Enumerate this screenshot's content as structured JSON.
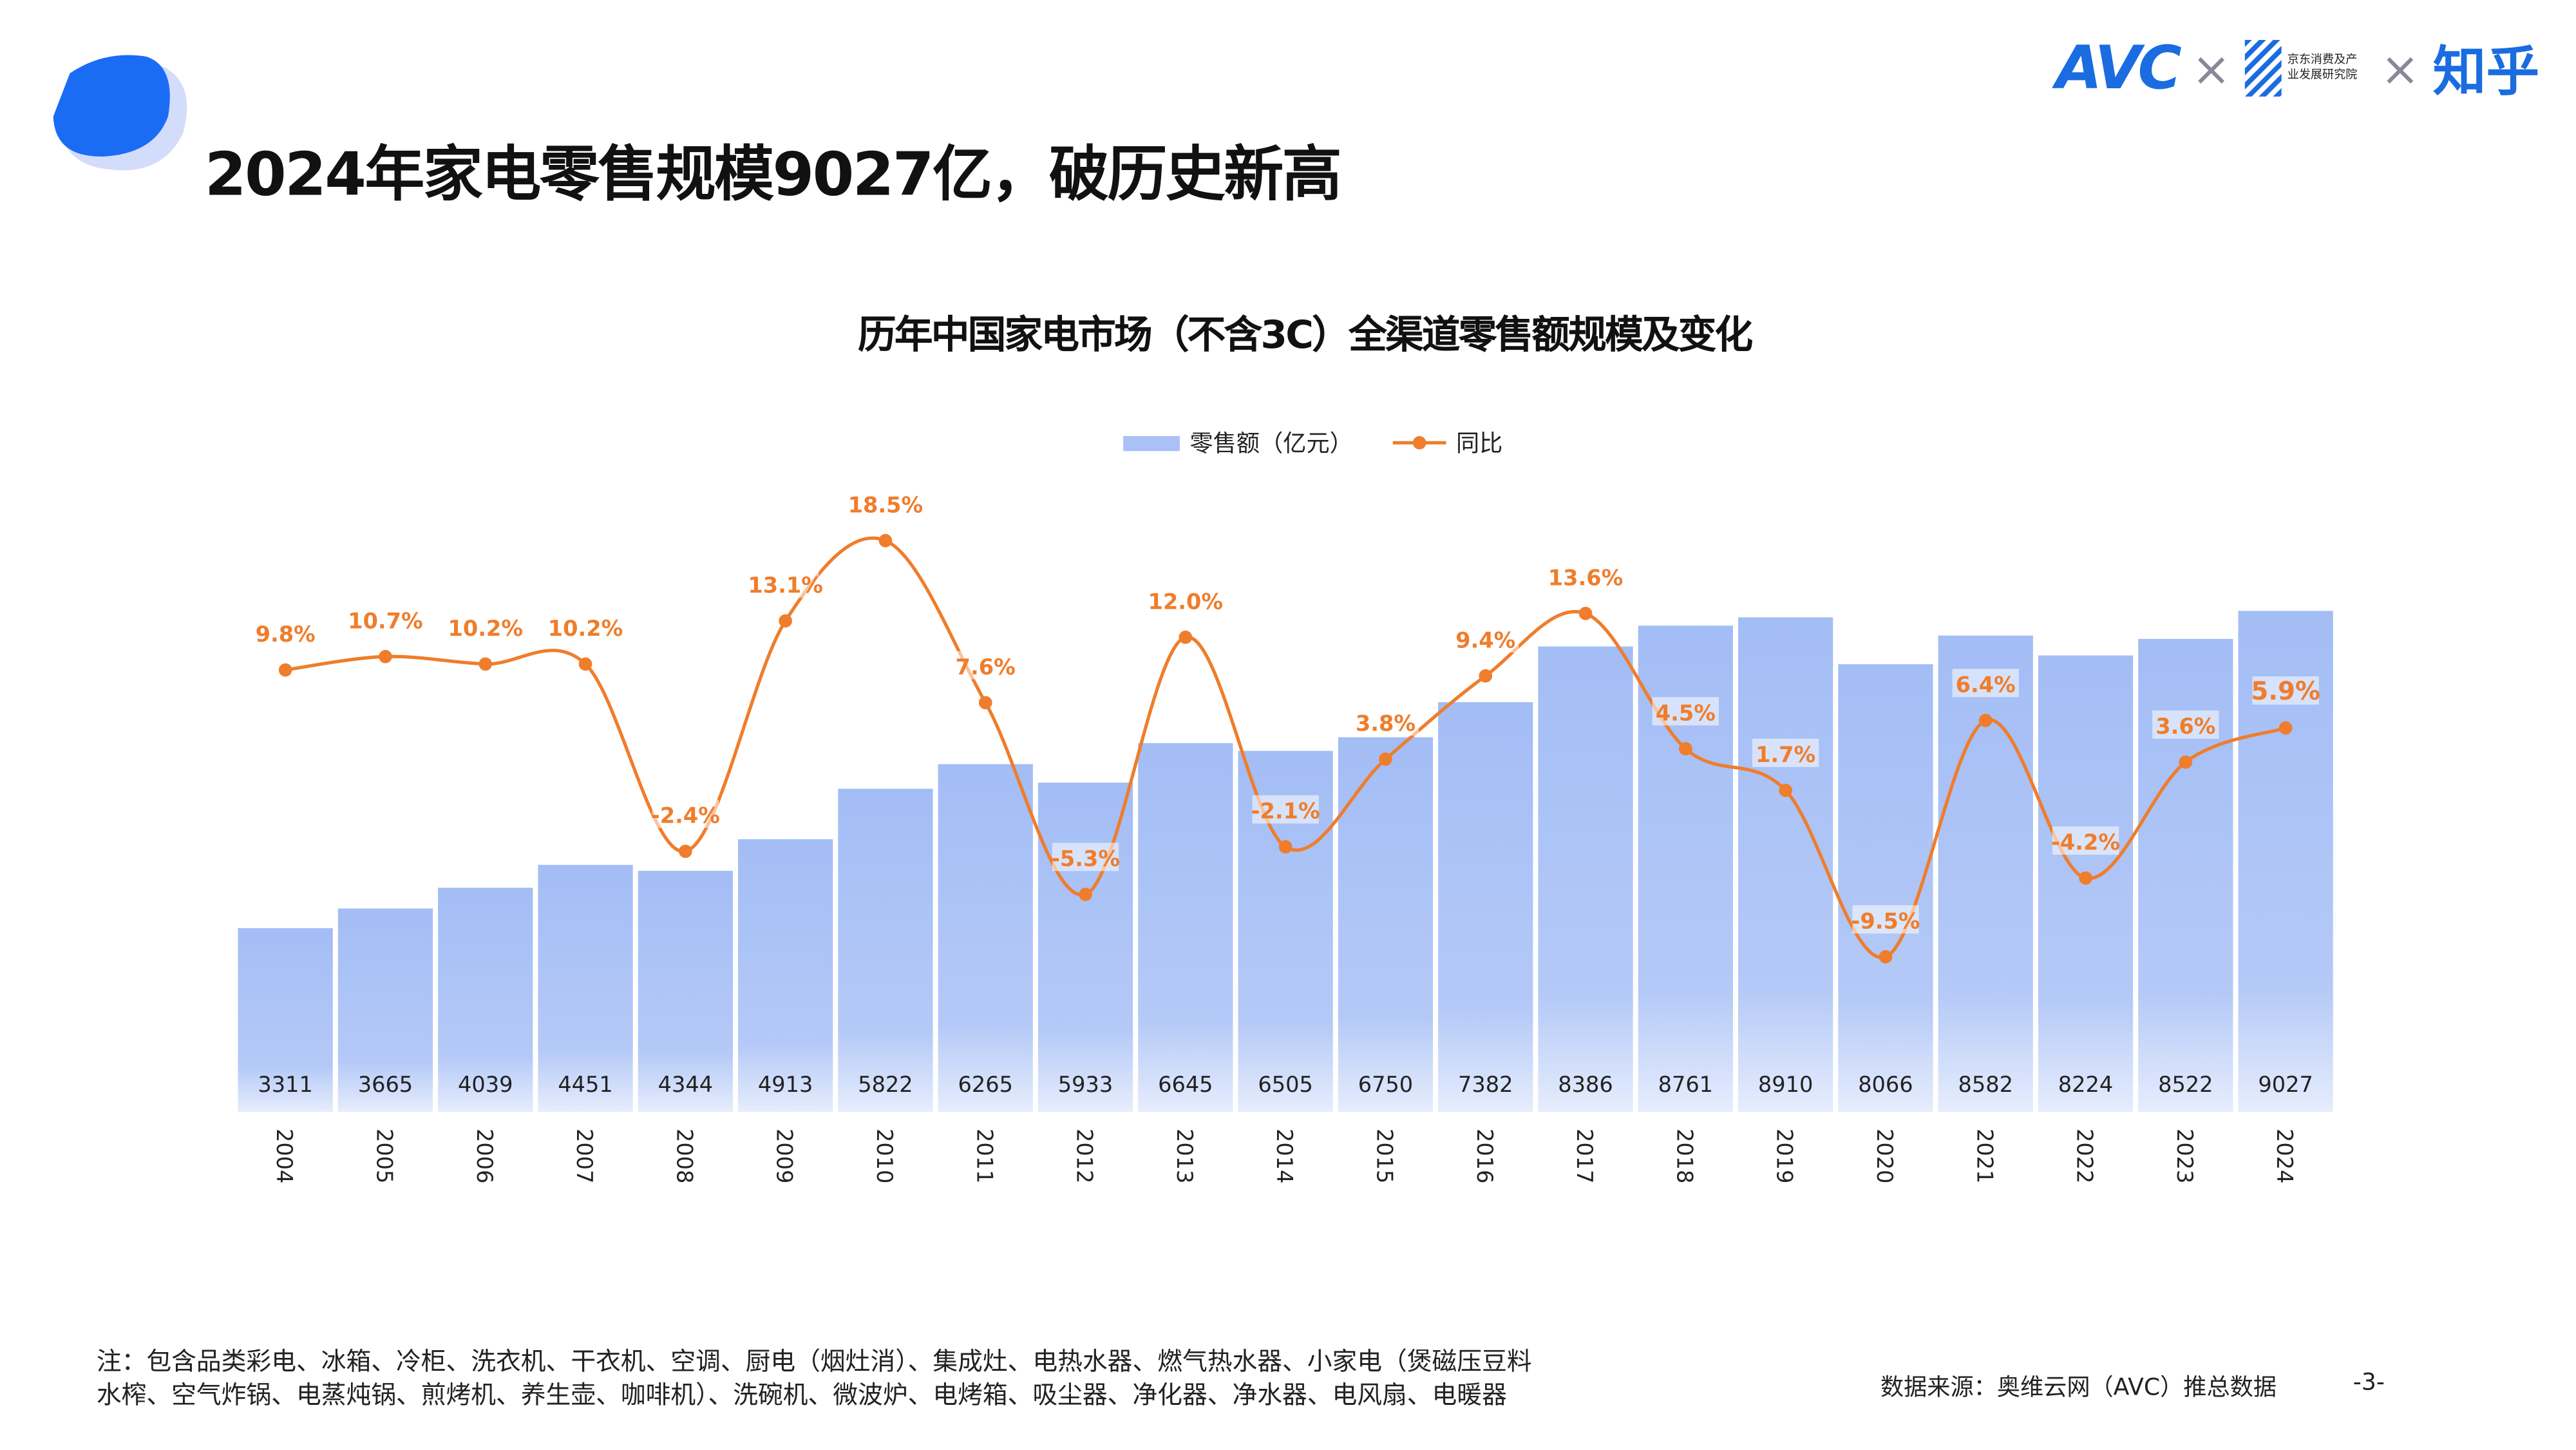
{
  "header": {
    "title": "2024年家电零售规模9027亿，破历史新高",
    "logos": {
      "avc": "AVC",
      "jd": "京东消费及产业发展研究院",
      "zhihu": "知乎",
      "separator": "×"
    }
  },
  "colors": {
    "bar": "#a9c1f6",
    "line": "#ef7d2c",
    "brand": "#1a6ce0"
  },
  "chart_data": {
    "type": "bar+line",
    "title": "历年中国家电市场（不含3C）全渠道零售额规模及变化",
    "legend_position": "top",
    "categories": [
      "2004",
      "2005",
      "2006",
      "2007",
      "2008",
      "2009",
      "2010",
      "2011",
      "2012",
      "2013",
      "2014",
      "2015",
      "2016",
      "2017",
      "2018",
      "2019",
      "2020",
      "2021",
      "2022",
      "2023",
      "2024"
    ],
    "series": [
      {
        "name": "零售额（亿元）",
        "type": "bar",
        "values": [
          3311,
          3665,
          4039,
          4451,
          4344,
          4913,
          5822,
          6265,
          5933,
          6645,
          6505,
          6750,
          7382,
          8386,
          8761,
          8910,
          8066,
          8582,
          8224,
          8522,
          9027
        ]
      },
      {
        "name": "同比",
        "type": "line",
        "unit": "%",
        "values": [
          9.8,
          10.7,
          10.2,
          10.2,
          -2.4,
          13.1,
          18.5,
          7.6,
          -5.3,
          12.0,
          -2.1,
          3.8,
          9.4,
          13.6,
          4.5,
          1.7,
          -9.5,
          6.4,
          -4.2,
          3.6,
          5.9
        ]
      }
    ],
    "grid": false
  },
  "footer": {
    "note_line1": "注：包含品类彩电、冰箱、冷柜、洗衣机、干衣机、空调、厨电（烟灶消）、集成灶、电热水器、燃气热水器、小家电（煲磁压豆料",
    "note_line2": "水榨、空气炸锅、电蒸炖锅、煎烤机、养生壶、咖啡机）、洗碗机、微波炉、电烤箱、吸尘器、净化器、净水器、电风扇、电暖器",
    "source": "数据来源：奥维云网（AVC）推总数据",
    "page": "-3-"
  }
}
